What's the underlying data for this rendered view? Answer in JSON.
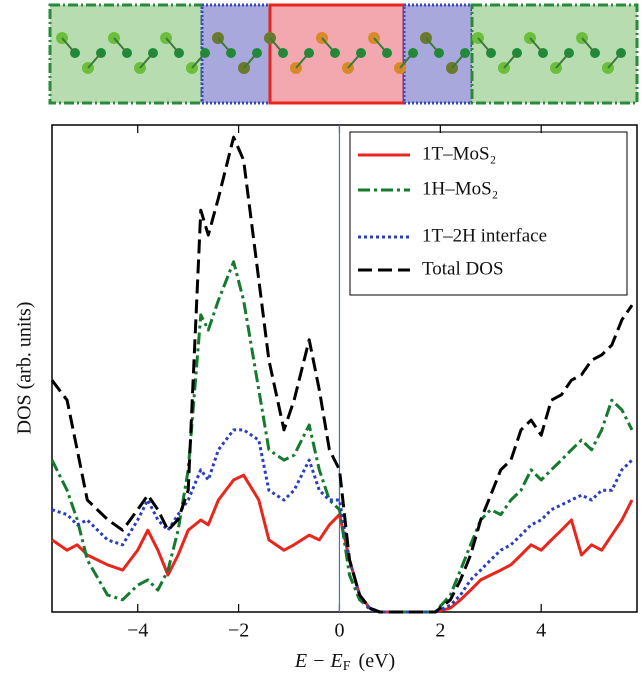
{
  "chart_data": {
    "type": "line",
    "x_label": {
      "main": "E − E",
      "sub": "F",
      "unit": "(eV)"
    },
    "y_label": "DOS  (arb. units)",
    "x": [
      -5.7,
      -5.4,
      -5.2,
      -5.0,
      -4.6,
      -4.3,
      -4.0,
      -3.8,
      -3.6,
      -3.4,
      -3.2,
      -3.0,
      -2.75,
      -2.6,
      -2.4,
      -2.1,
      -1.9,
      -1.6,
      -1.4,
      -1.1,
      -0.9,
      -0.6,
      -0.4,
      -0.2,
      0,
      0.2,
      0.4,
      0.6,
      0.8,
      1.0,
      1.5,
      1.9,
      2.2,
      2.4,
      2.6,
      2.8,
      3.0,
      3.2,
      3.4,
      3.6,
      3.8,
      4.0,
      4.2,
      4.4,
      4.6,
      4.8,
      5.0,
      5.2,
      5.4,
      5.6,
      5.8
    ],
    "series": [
      {
        "name": "1T–MoS₂",
        "color": "#e8261c",
        "dash": "solid",
        "values": [
          1.48,
          1.27,
          1.38,
          1.17,
          0.97,
          0.86,
          1.27,
          1.68,
          1.27,
          0.76,
          1.17,
          1.68,
          1.89,
          1.79,
          2.3,
          2.71,
          2.81,
          2.3,
          1.48,
          1.27,
          1.38,
          1.58,
          1.48,
          1.79,
          2.0,
          1.07,
          0.35,
          0.08,
          0,
          0,
          0,
          0,
          0.08,
          0.25,
          0.45,
          0.66,
          0.76,
          0.86,
          0.97,
          1.17,
          1.38,
          1.27,
          1.48,
          1.68,
          1.89,
          1.17,
          1.38,
          1.27,
          1.58,
          1.89,
          2.3
        ]
      },
      {
        "name": "1H–MoS₂",
        "color": "#137a2e",
        "dash": "dashdot",
        "values": [
          3.12,
          2.5,
          1.9,
          1.07,
          0.35,
          0.25,
          0.55,
          0.66,
          0.45,
          0.86,
          1.68,
          2.92,
          6.1,
          5.79,
          6.4,
          7.19,
          6.4,
          4.56,
          3.33,
          3.12,
          3.22,
          3.84,
          2.92,
          2.3,
          2.1,
          0.76,
          0.25,
          0.08,
          0,
          0,
          0,
          0,
          0.35,
          0.86,
          1.38,
          1.89,
          2.1,
          2.0,
          2.3,
          2.5,
          2.92,
          2.71,
          2.92,
          3.12,
          3.33,
          3.53,
          3.33,
          3.74,
          4.35,
          4.15,
          3.74
        ]
      },
      {
        "name": "1T–2H interface",
        "color": "#2a3fc0",
        "dash": "dotted",
        "values": [
          2.1,
          2.0,
          1.79,
          1.89,
          1.48,
          1.38,
          1.89,
          2.3,
          1.89,
          1.68,
          2.0,
          2.3,
          2.92,
          2.71,
          3.33,
          3.74,
          3.74,
          3.53,
          2.5,
          2.3,
          2.5,
          3.12,
          2.5,
          2.3,
          2.3,
          1.07,
          0.35,
          0.04,
          0,
          0,
          0,
          0,
          0.14,
          0.35,
          0.66,
          0.86,
          1.07,
          1.27,
          1.38,
          1.58,
          1.79,
          1.89,
          2.1,
          2.2,
          2.3,
          2.4,
          2.3,
          2.5,
          2.5,
          2.92,
          3.12
        ]
      },
      {
        "name": "Total DOS",
        "color": "#000000",
        "dash": "dashed",
        "values": [
          4.76,
          4.35,
          3.33,
          2.3,
          1.9,
          1.68,
          2.1,
          2.4,
          2.1,
          1.68,
          1.9,
          2.5,
          8.25,
          7.74,
          8.5,
          9.75,
          9.28,
          6.82,
          5.17,
          3.74,
          4.35,
          5.59,
          4.56,
          3.33,
          2.92,
          1.07,
          0.35,
          0.08,
          0,
          0,
          0,
          0,
          0.25,
          0.66,
          1.17,
          1.89,
          2.4,
          2.92,
          3.12,
          3.74,
          3.94,
          3.63,
          4.35,
          4.46,
          4.76,
          4.87,
          5.17,
          5.28,
          5.48,
          6.0,
          6.3
        ]
      }
    ],
    "xlim": [
      -5.7,
      5.9
    ],
    "ylim": [
      0,
      10
    ],
    "xticks": [
      {
        "value": -4,
        "label": "−4"
      },
      {
        "value": -2,
        "label": "−2"
      },
      0,
      2,
      4
    ],
    "vline": 0,
    "vline_color": "#4a6fd0",
    "legend": "upper right"
  }
}
